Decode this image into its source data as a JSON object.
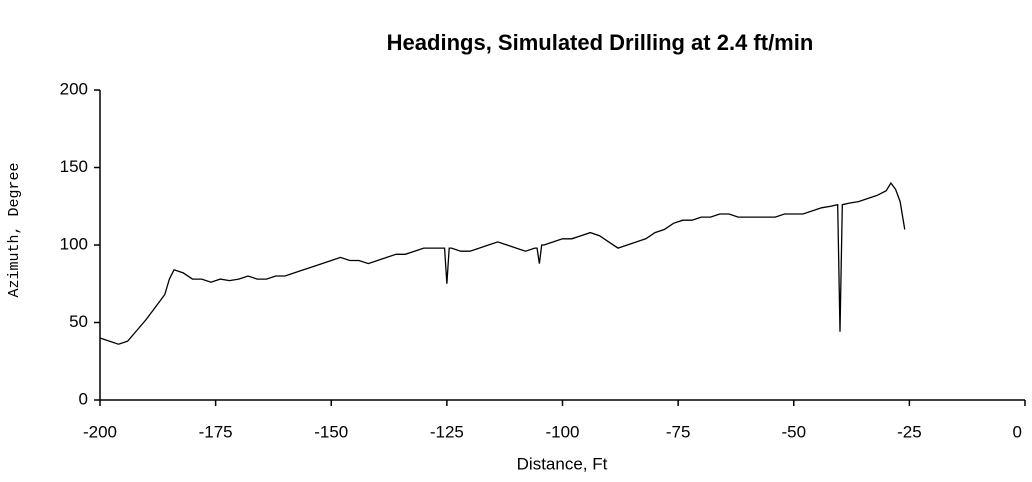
{
  "chart_data": {
    "type": "line",
    "title": "Headings, Simulated Drilling at 2.4 ft/min",
    "x_label": "Distance, Ft",
    "y_label": "Azimuth, Degree",
    "xlim": [
      -200,
      0
    ],
    "xticks": [
      -200,
      -175,
      -150,
      -125,
      -100,
      -75,
      -50,
      -25,
      0
    ],
    "ylim": [
      0,
      200
    ],
    "yticks": [
      0,
      50,
      100,
      150,
      200
    ],
    "series": [
      {
        "name": "Heading",
        "color": "#000000",
        "x": [
          -200,
          -198,
          -196,
          -194,
          -192,
          -190,
          -188,
          -186,
          -185,
          -184,
          -182,
          -180,
          -178,
          -176,
          -174,
          -172,
          -170,
          -168,
          -166,
          -164,
          -162,
          -160,
          -158,
          -156,
          -154,
          -152,
          -150,
          -148,
          -146,
          -144,
          -142,
          -140,
          -138,
          -136,
          -134,
          -132,
          -130,
          -128,
          -126,
          -125.5,
          -125,
          -124.5,
          -124,
          -122,
          -120,
          -118,
          -116,
          -114,
          -112,
          -110,
          -108,
          -106,
          -105.5,
          -105,
          -104.5,
          -104,
          -102,
          -100,
          -98,
          -96,
          -94,
          -92,
          -90,
          -88,
          -86,
          -84,
          -82,
          -80,
          -78,
          -76,
          -74,
          -72,
          -70,
          -68,
          -66,
          -64,
          -62,
          -60,
          -58,
          -56,
          -54,
          -52,
          -50,
          -48,
          -46,
          -44,
          -42,
          -40.5,
          -40,
          -39.5,
          -38,
          -36,
          -34,
          -32,
          -30,
          -29,
          -28,
          -27,
          -26
        ],
        "values": [
          40,
          38,
          36,
          38,
          45,
          52,
          60,
          68,
          78,
          84,
          82,
          78,
          78,
          76,
          78,
          77,
          78,
          80,
          78,
          78,
          80,
          80,
          82,
          84,
          86,
          88,
          90,
          92,
          90,
          90,
          88,
          90,
          92,
          94,
          94,
          96,
          98,
          98,
          98,
          98,
          75,
          98,
          98,
          96,
          96,
          98,
          100,
          102,
          100,
          98,
          96,
          98,
          98,
          88,
          100,
          100,
          102,
          104,
          104,
          106,
          108,
          106,
          102,
          98,
          100,
          102,
          104,
          108,
          110,
          114,
          116,
          116,
          118,
          118,
          120,
          120,
          118,
          118,
          118,
          118,
          118,
          120,
          120,
          120,
          122,
          124,
          125,
          126,
          44,
          126,
          127,
          128,
          130,
          132,
          135,
          140,
          136,
          128,
          110
        ]
      }
    ]
  }
}
